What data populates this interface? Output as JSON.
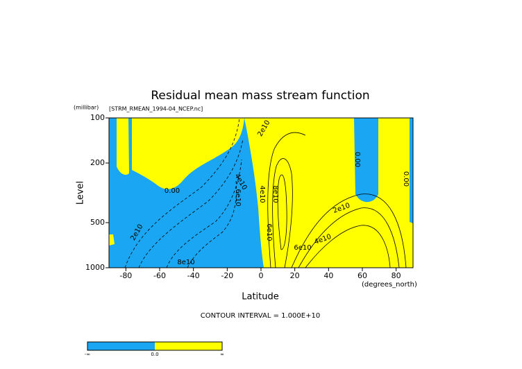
{
  "chart_data": {
    "type": "contour",
    "title": "Residual mean mass stream function",
    "subtitle": "[STRM_RMEAN_1994-04_NCEP.nc]",
    "xlabel": "Latitude",
    "ylabel": "Level",
    "x_unit": "(degrees_north)",
    "y_unit": "(millibar)",
    "xlim": [
      -90,
      90
    ],
    "ylim": [
      1000,
      100
    ],
    "yscale": "log",
    "xticks": [
      -80,
      -60,
      -40,
      -20,
      0,
      20,
      40,
      60,
      80
    ],
    "yticks": [
      100,
      200,
      500,
      1000
    ],
    "negative_color": "#1aa6f2",
    "positive_color": "#ffff00",
    "contour_labels": [
      "0.00",
      "0.00",
      "0.00",
      "2e10",
      "2e10",
      "8e10",
      "2e10",
      "4e10",
      "6e10",
      "4e10",
      "8e10",
      "6e10",
      "4e10",
      "6e10"
    ],
    "footnote": "CONTOUR INTERVAL = 1.000E+10",
    "colorbar_labels": [
      "-∞",
      "0.0",
      "∞"
    ]
  }
}
